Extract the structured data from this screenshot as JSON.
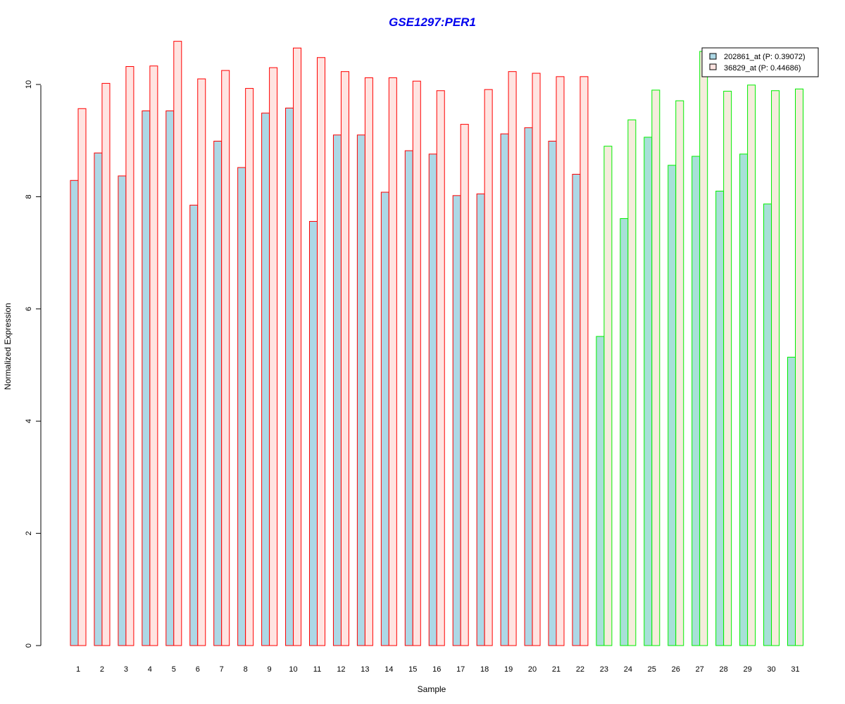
{
  "chart_data": {
    "type": "bar",
    "title": "GSE1297:PER1",
    "xlabel": "Sample",
    "ylabel": "Normalized Expression",
    "ylim": [
      0,
      10.9
    ],
    "yticks": [
      0,
      2,
      4,
      6,
      8,
      10
    ],
    "grid": false,
    "legend_position": "top-right",
    "categories": [
      "1",
      "2",
      "3",
      "4",
      "5",
      "6",
      "7",
      "8",
      "9",
      "10",
      "11",
      "12",
      "13",
      "14",
      "15",
      "16",
      "17",
      "18",
      "19",
      "20",
      "21",
      "22",
      "23",
      "24",
      "25",
      "26",
      "27",
      "28",
      "29",
      "30",
      "31"
    ],
    "groups": [
      {
        "from": 1,
        "to": 22,
        "border_color": "#ff0000",
        "fills": [
          "#add8e6",
          "#ffe4e1"
        ]
      },
      {
        "from": 23,
        "to": 31,
        "border_color": "#00ee00",
        "fills": [
          "#a8e0d8",
          "#f5ecdc"
        ]
      }
    ],
    "series": [
      {
        "name": "202861_at (P: 0.39072)",
        "color": "#add8e6",
        "values": [
          8.29,
          8.78,
          8.37,
          9.53,
          9.53,
          7.85,
          8.99,
          8.52,
          9.49,
          9.58,
          7.56,
          9.1,
          9.1,
          8.08,
          8.82,
          8.76,
          8.02,
          8.05,
          9.12,
          9.23,
          8.99,
          8.4,
          5.51,
          7.61,
          9.06,
          8.56,
          8.72,
          8.1,
          8.76,
          7.87,
          5.14
        ]
      },
      {
        "name": "36829_at (P: 0.44686)",
        "color": "#ffe4e1",
        "values": [
          9.57,
          10.02,
          10.32,
          10.33,
          10.77,
          10.1,
          10.25,
          9.93,
          10.3,
          10.65,
          10.48,
          10.23,
          10.12,
          10.12,
          10.06,
          9.89,
          9.29,
          9.91,
          10.23,
          10.2,
          10.14,
          10.14,
          8.9,
          9.37,
          9.9,
          9.71,
          10.59,
          9.88,
          9.99,
          9.89,
          9.92
        ]
      }
    ]
  }
}
